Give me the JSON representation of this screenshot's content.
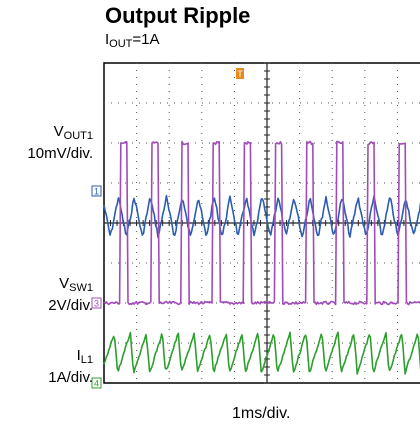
{
  "title": "Output Ripple",
  "condition": {
    "var": "I",
    "sub": "OUT",
    "rest": "=1A"
  },
  "channels": [
    {
      "name_main": "V",
      "name_sub": "OUT1",
      "scale": "10mV/div.",
      "marker": "1",
      "color": "#2a5db0"
    },
    {
      "name_main": "V",
      "name_sub": "SW1",
      "scale": "2V/div.",
      "marker": "3",
      "color": "#a04cb8"
    },
    {
      "name_main": "I",
      "name_sub": "L1",
      "scale": "1A/div.",
      "marker": "4",
      "color": "#2e9e2e"
    }
  ],
  "trigger_marker": "T",
  "x_scale": "1ms/div.",
  "chart_data": {
    "type": "line",
    "title": "Output Ripple",
    "subtitle": "IOUT=1A",
    "xlabel": "1ms/div.",
    "x_divisions": 10,
    "y_divisions": 8,
    "x_unit": "ms",
    "series": [
      {
        "name": "VOUT1",
        "scale": "10mV/div.",
        "waveform": "ripple",
        "period_ms": 0.49,
        "peak_to_peak_div": 1.0,
        "center_div_from_top": 3.85
      },
      {
        "name": "VSW1",
        "scale": "2V/div.",
        "waveform": "pulse",
        "period_ms": 0.95,
        "pulse_width_ms": 0.22,
        "high_div_from_top": 2.0,
        "low_div_from_top": 6.0
      },
      {
        "name": "IL1",
        "scale": "1A/div.",
        "waveform": "triangle",
        "period_ms": 0.49,
        "peak_to_peak_div": 1.0,
        "center_div_from_top": 7.25
      }
    ]
  }
}
